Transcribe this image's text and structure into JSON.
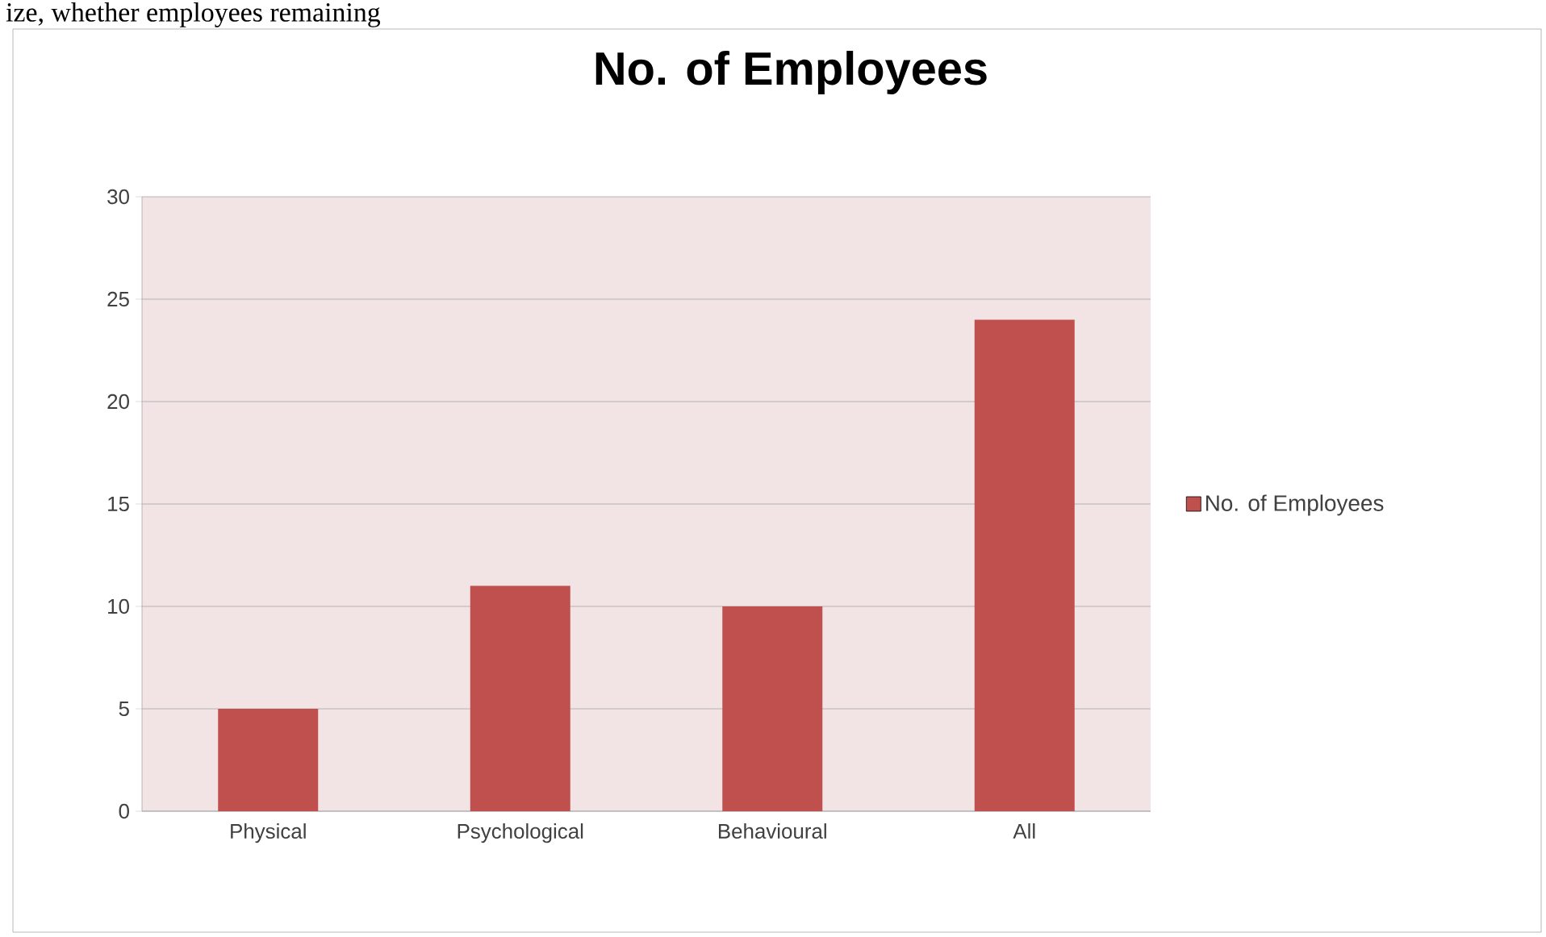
{
  "chart_data": {
    "type": "bar",
    "title": "No. of Employees",
    "categories": [
      "Physical",
      "Psychological",
      "Behavioural",
      "All"
    ],
    "series": [
      {
        "name": "No. of Employees",
        "color": "#c0504d",
        "values": [
          5,
          11,
          10,
          24
        ]
      }
    ],
    "ylim": [
      0,
      30
    ],
    "yticks": [
      0,
      5,
      10,
      15,
      20,
      25,
      30
    ],
    "grid": "y",
    "legend": "right",
    "annotations": [
      "ize, whether employees remaining"
    ]
  }
}
